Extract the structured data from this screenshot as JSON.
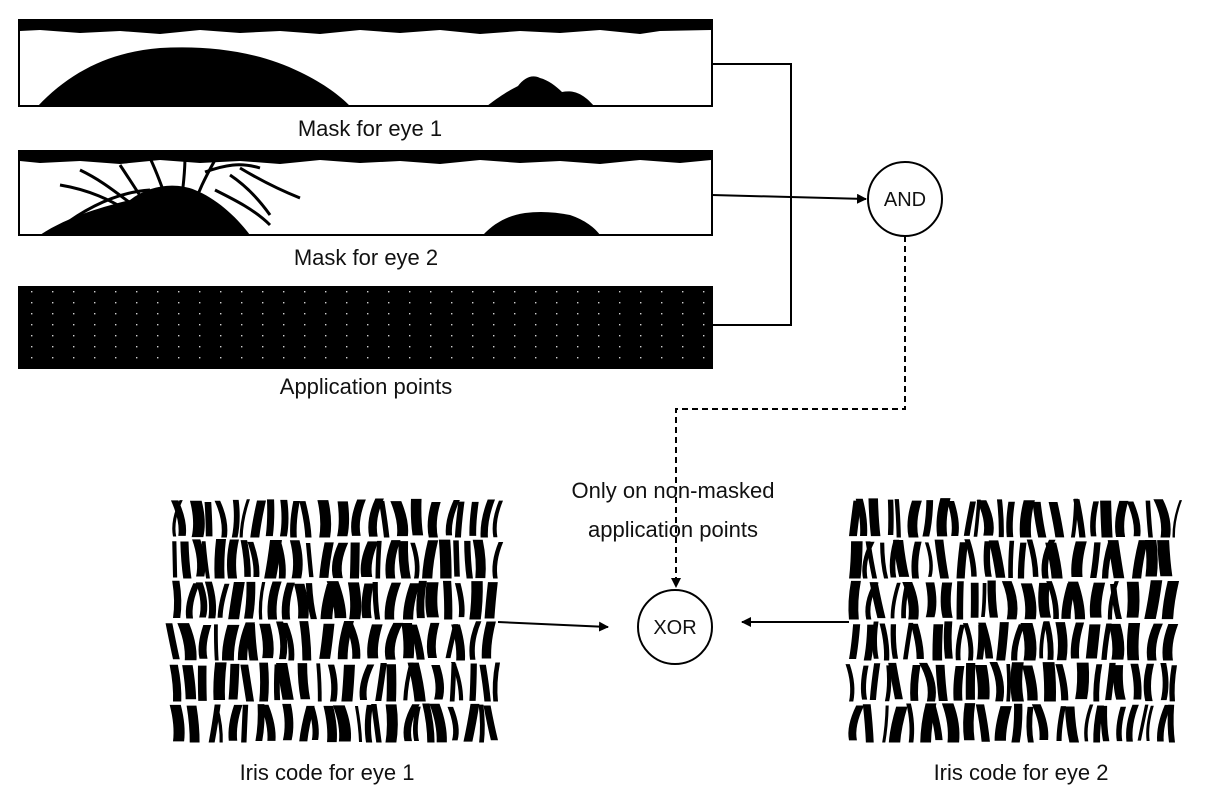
{
  "panels": {
    "mask1": {
      "label": "Mask for eye 1"
    },
    "mask2": {
      "label": "Mask for eye 2"
    },
    "app_points": {
      "label": "Application points"
    },
    "iris1": {
      "label": "Iris code for eye 1"
    },
    "iris2": {
      "label": "Iris code for eye 2"
    }
  },
  "nodes": {
    "and": {
      "label": "AND"
    },
    "xor": {
      "label": "XOR"
    }
  },
  "annotation": {
    "line1": "Only on non-masked",
    "line2": "application points"
  },
  "colors": {
    "ink": "#000000",
    "paper": "#ffffff",
    "dot": "#cfcfcf"
  }
}
